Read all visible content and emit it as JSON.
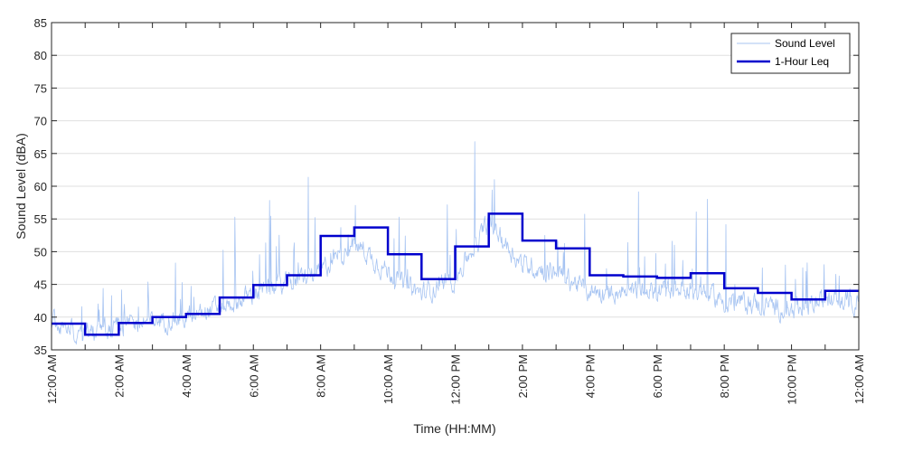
{
  "chart_data": {
    "type": "line",
    "title": "",
    "xlabel": "Time (HH:MM)",
    "ylabel": "Sound Level (dBA)",
    "ylim": [
      35,
      85
    ],
    "xlim_hours": [
      0,
      24
    ],
    "yticks": [
      35,
      40,
      45,
      50,
      55,
      60,
      65,
      70,
      75,
      80,
      85
    ],
    "xticks": [
      {
        "hour": 0,
        "label": "12:00 AM"
      },
      {
        "hour": 2,
        "label": "2:00 AM"
      },
      {
        "hour": 4,
        "label": "4:00 AM"
      },
      {
        "hour": 6,
        "label": "6:00 AM"
      },
      {
        "hour": 8,
        "label": "8:00 AM"
      },
      {
        "hour": 10,
        "label": "10:00 AM"
      },
      {
        "hour": 12,
        "label": "12:00 PM"
      },
      {
        "hour": 14,
        "label": "2:00 PM"
      },
      {
        "hour": 16,
        "label": "4:00 PM"
      },
      {
        "hour": 18,
        "label": "6:00 PM"
      },
      {
        "hour": 20,
        "label": "8:00 PM"
      },
      {
        "hour": 22,
        "label": "10:00 PM"
      },
      {
        "hour": 24,
        "label": "12:00 AM"
      }
    ],
    "grid": true,
    "legend_position": "top-right",
    "series": [
      {
        "name": "Sound Level",
        "style": "thin-line",
        "color": "#a7c4f2",
        "hourly_typical": [
          39.5,
          37.5,
          38.5,
          39.5,
          40.0,
          41.5,
          43.5,
          45.0,
          47.0,
          51.5,
          47.0,
          43.5,
          46.0,
          54.5,
          48.0,
          47.0,
          44.0,
          44.0,
          44.0,
          44.5,
          42.5,
          42.0,
          41.0,
          42.5
        ]
      },
      {
        "name": "1-Hour Leq",
        "style": "step",
        "color": "#0000cd",
        "hourly_values": [
          39.0,
          37.3,
          39.1,
          40.0,
          40.5,
          43.0,
          44.9,
          46.4,
          52.4,
          53.7,
          49.6,
          45.8,
          50.8,
          55.8,
          51.7,
          50.5,
          46.4,
          46.2,
          46.0,
          46.7,
          44.4,
          43.7,
          42.7,
          44.0
        ]
      }
    ]
  }
}
